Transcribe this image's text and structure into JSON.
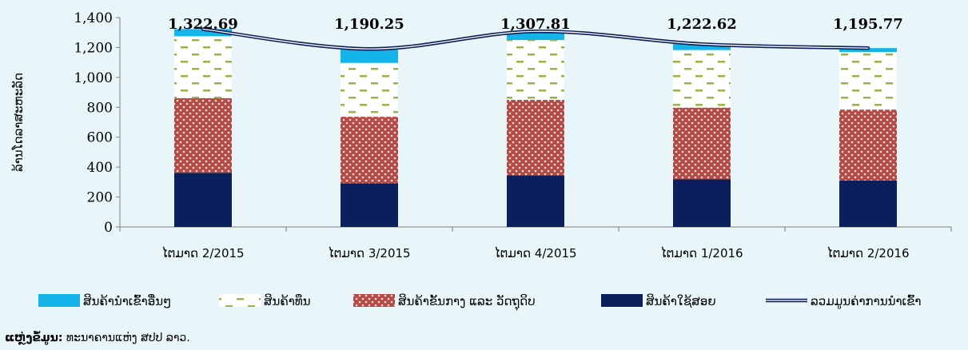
{
  "chart_data": {
    "type": "bar",
    "stacked": true,
    "title": "",
    "ylabel": "ລ້ານໂດລາສະຫະລັດ",
    "xlabel": "",
    "ylim": [
      0,
      1400
    ],
    "yticks": [
      "0",
      "200",
      "400",
      "600",
      "800",
      "1,000",
      "1,200",
      "1,400"
    ],
    "ytick_values": [
      0,
      200,
      400,
      600,
      800,
      1000,
      1200,
      1400
    ],
    "grid": false,
    "legend_position": "bottom",
    "categories": [
      "ໄຕມາດ 2/2015",
      "ໄຕມາດ 3/2015",
      "ໄຕມາດ 4/2015",
      "ໄຕມາດ 1/2016",
      "ໄຕມາດ 2/2016"
    ],
    "series": [
      {
        "name": "ສິນຄ້າໃຊ້ສອຍ",
        "values": [
          362,
          292,
          345,
          318,
          310
        ],
        "color": "#0a1f5c",
        "pattern": "solid"
      },
      {
        "name": "ສິນຄ້າຂັ້ນກາງ ແລະ ວັດຖຸດິບ",
        "values": [
          500,
          445,
          505,
          480,
          475
        ],
        "color": "#b84a43",
        "pattern": "dots"
      },
      {
        "name": "ສິນຄ້າທຶນ",
        "values": [
          413,
          360,
          400,
          385,
          385
        ],
        "color": "#9bb04f",
        "pattern": "dashes"
      },
      {
        "name": "ສິນຄ້ານຳເຂົ້າອື່ນໆ",
        "values": [
          48,
          93,
          58,
          40,
          26
        ],
        "color": "#14b4e8",
        "pattern": "solid"
      }
    ],
    "total_line": {
      "name": "ລວມມູນຄ່າການນຳເຂົ້າ",
      "values": [
        1322.69,
        1190.25,
        1307.81,
        1222.62,
        1195.77
      ],
      "labels": [
        "1,322.69",
        "1,190.25",
        "1,307.81",
        "1,222.62",
        "1,195.77"
      ],
      "color": "#0a1f5c"
    },
    "legend_order": [
      "ສິນຄ້ານຳເຂົ້າອື່ນໆ",
      "ສິນຄ້າທຶນ",
      "ສິນຄ້າຂັ້ນກາງ ແລະ ວັດຖຸດິບ",
      "ສິນຄ້າໃຊ້ສອຍ",
      "ລວມມູນຄ່າການນຳເຂົ້າ"
    ]
  },
  "source": {
    "label": "ແຫຼ່ງຂໍ້ມູນ:",
    "text": " ທະນາຄານແຫ່ງ ສປປ ລາວ."
  }
}
